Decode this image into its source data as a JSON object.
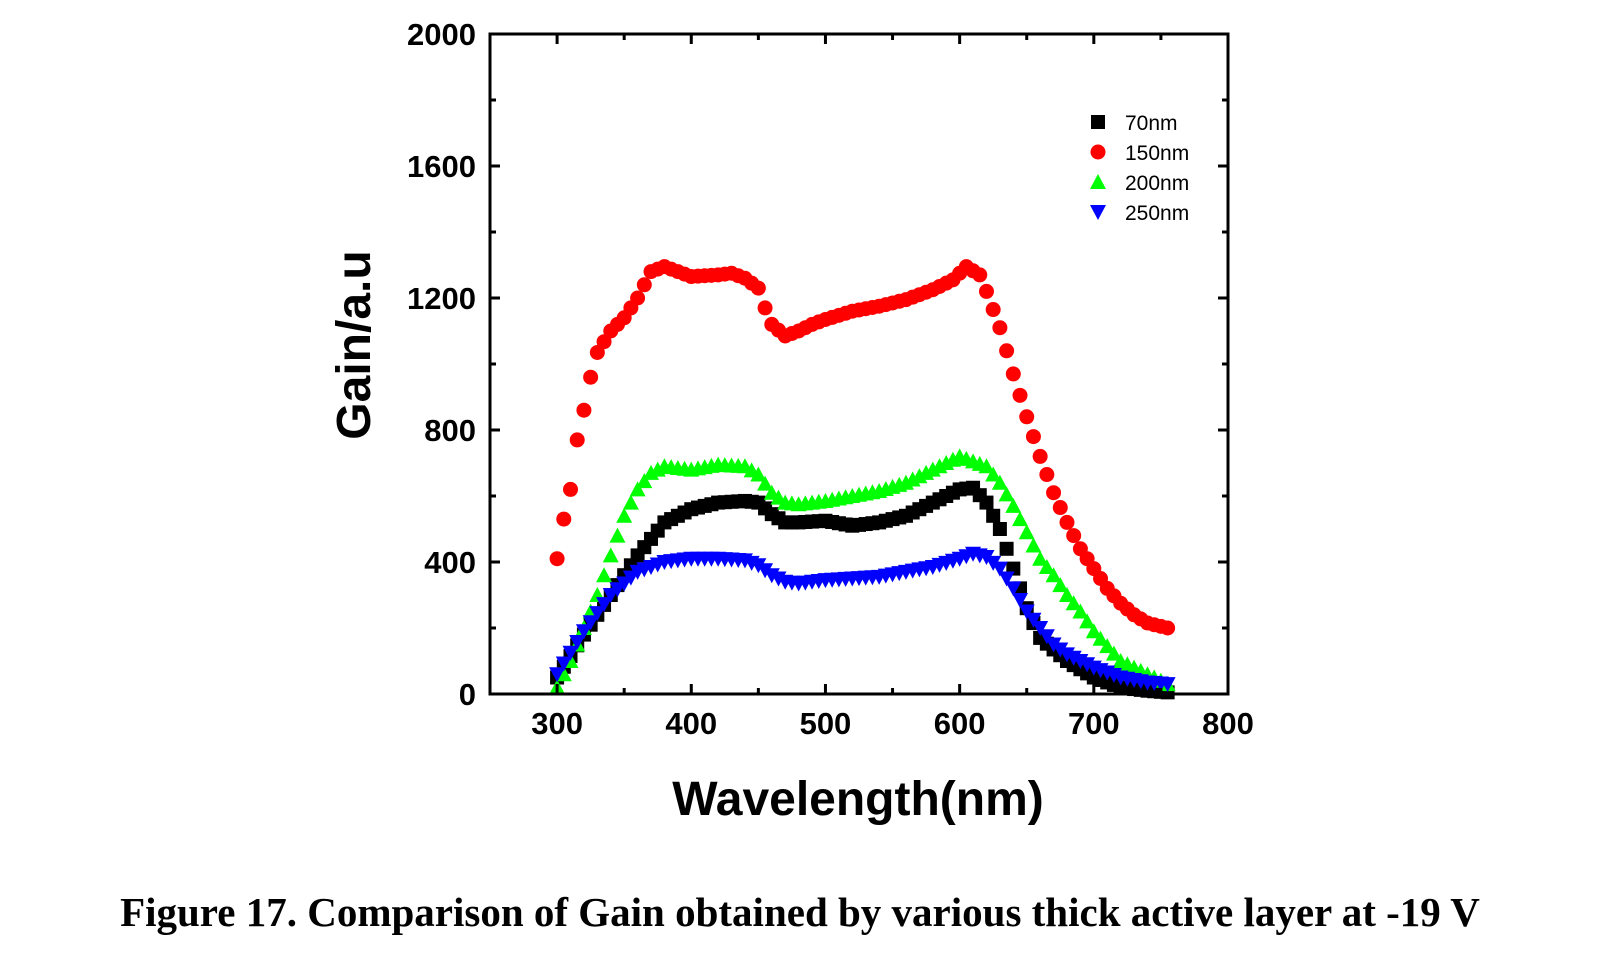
{
  "caption": "Figure 17. Comparison of Gain obtained by various thick active layer at -19 V",
  "chart_data": {
    "type": "scatter",
    "xlabel": "Wavelength(nm)",
    "ylabel": "Gain/a.u",
    "xlim": [
      250,
      800
    ],
    "ylim": [
      0,
      2000
    ],
    "xticks": [
      300,
      400,
      500,
      600,
      700,
      800
    ],
    "yticks": [
      0,
      400,
      800,
      1200,
      1600,
      2000
    ],
    "legend_position": "top-right",
    "grid": false,
    "series": [
      {
        "name": "70nm",
        "marker": "square",
        "color": "#000000",
        "knots": [
          [
            300,
            50
          ],
          [
            320,
            180
          ],
          [
            340,
            300
          ],
          [
            360,
            420
          ],
          [
            380,
            520
          ],
          [
            400,
            560
          ],
          [
            420,
            580
          ],
          [
            440,
            585
          ],
          [
            450,
            580
          ],
          [
            460,
            545
          ],
          [
            470,
            520
          ],
          [
            480,
            520
          ],
          [
            500,
            525
          ],
          [
            520,
            510
          ],
          [
            540,
            520
          ],
          [
            560,
            540
          ],
          [
            580,
            580
          ],
          [
            600,
            620
          ],
          [
            610,
            625
          ],
          [
            620,
            580
          ],
          [
            630,
            500
          ],
          [
            640,
            380
          ],
          [
            650,
            260
          ],
          [
            660,
            170
          ],
          [
            680,
            100
          ],
          [
            700,
            50
          ],
          [
            720,
            20
          ],
          [
            740,
            10
          ],
          [
            755,
            5
          ]
        ]
      },
      {
        "name": "150nm",
        "marker": "circle",
        "color": "#ff0000",
        "knots": [
          [
            300,
            410
          ],
          [
            305,
            530
          ],
          [
            310,
            620
          ],
          [
            315,
            770
          ],
          [
            320,
            860
          ],
          [
            325,
            960
          ],
          [
            330,
            1035
          ],
          [
            340,
            1100
          ],
          [
            350,
            1140
          ],
          [
            360,
            1200
          ],
          [
            370,
            1280
          ],
          [
            380,
            1295
          ],
          [
            390,
            1280
          ],
          [
            400,
            1265
          ],
          [
            420,
            1270
          ],
          [
            430,
            1275
          ],
          [
            440,
            1260
          ],
          [
            450,
            1230
          ],
          [
            455,
            1170
          ],
          [
            460,
            1120
          ],
          [
            470,
            1085
          ],
          [
            480,
            1100
          ],
          [
            490,
            1120
          ],
          [
            500,
            1135
          ],
          [
            520,
            1160
          ],
          [
            540,
            1175
          ],
          [
            560,
            1195
          ],
          [
            580,
            1225
          ],
          [
            595,
            1255
          ],
          [
            605,
            1295
          ],
          [
            615,
            1270
          ],
          [
            620,
            1220
          ],
          [
            630,
            1110
          ],
          [
            640,
            970
          ],
          [
            650,
            840
          ],
          [
            660,
            720
          ],
          [
            670,
            610
          ],
          [
            680,
            520
          ],
          [
            690,
            440
          ],
          [
            700,
            380
          ],
          [
            710,
            320
          ],
          [
            720,
            275
          ],
          [
            730,
            240
          ],
          [
            740,
            215
          ],
          [
            750,
            205
          ],
          [
            755,
            200
          ]
        ]
      },
      {
        "name": "200nm",
        "marker": "triangle-up",
        "color": "#00ff00",
        "knots": [
          [
            300,
            20
          ],
          [
            310,
            100
          ],
          [
            320,
            200
          ],
          [
            330,
            300
          ],
          [
            340,
            420
          ],
          [
            350,
            540
          ],
          [
            360,
            620
          ],
          [
            370,
            670
          ],
          [
            380,
            690
          ],
          [
            400,
            680
          ],
          [
            420,
            695
          ],
          [
            440,
            690
          ],
          [
            450,
            665
          ],
          [
            460,
            610
          ],
          [
            470,
            580
          ],
          [
            480,
            575
          ],
          [
            500,
            585
          ],
          [
            520,
            600
          ],
          [
            540,
            615
          ],
          [
            560,
            640
          ],
          [
            580,
            680
          ],
          [
            600,
            720
          ],
          [
            620,
            690
          ],
          [
            630,
            640
          ],
          [
            640,
            570
          ],
          [
            650,
            490
          ],
          [
            660,
            410
          ],
          [
            670,
            360
          ],
          [
            680,
            300
          ],
          [
            690,
            250
          ],
          [
            700,
            190
          ],
          [
            720,
            100
          ],
          [
            740,
            60
          ],
          [
            755,
            30
          ]
        ]
      },
      {
        "name": "250nm",
        "marker": "triangle-down",
        "color": "#0000ff",
        "knots": [
          [
            300,
            60
          ],
          [
            320,
            190
          ],
          [
            340,
            300
          ],
          [
            360,
            370
          ],
          [
            380,
            400
          ],
          [
            400,
            410
          ],
          [
            420,
            410
          ],
          [
            440,
            405
          ],
          [
            450,
            390
          ],
          [
            460,
            360
          ],
          [
            470,
            340
          ],
          [
            480,
            335
          ],
          [
            500,
            345
          ],
          [
            520,
            350
          ],
          [
            540,
            355
          ],
          [
            560,
            370
          ],
          [
            580,
            385
          ],
          [
            600,
            410
          ],
          [
            610,
            425
          ],
          [
            620,
            415
          ],
          [
            630,
            380
          ],
          [
            640,
            320
          ],
          [
            650,
            250
          ],
          [
            660,
            200
          ],
          [
            670,
            150
          ],
          [
            680,
            120
          ],
          [
            700,
            80
          ],
          [
            720,
            50
          ],
          [
            740,
            35
          ],
          [
            755,
            30
          ]
        ]
      }
    ]
  }
}
